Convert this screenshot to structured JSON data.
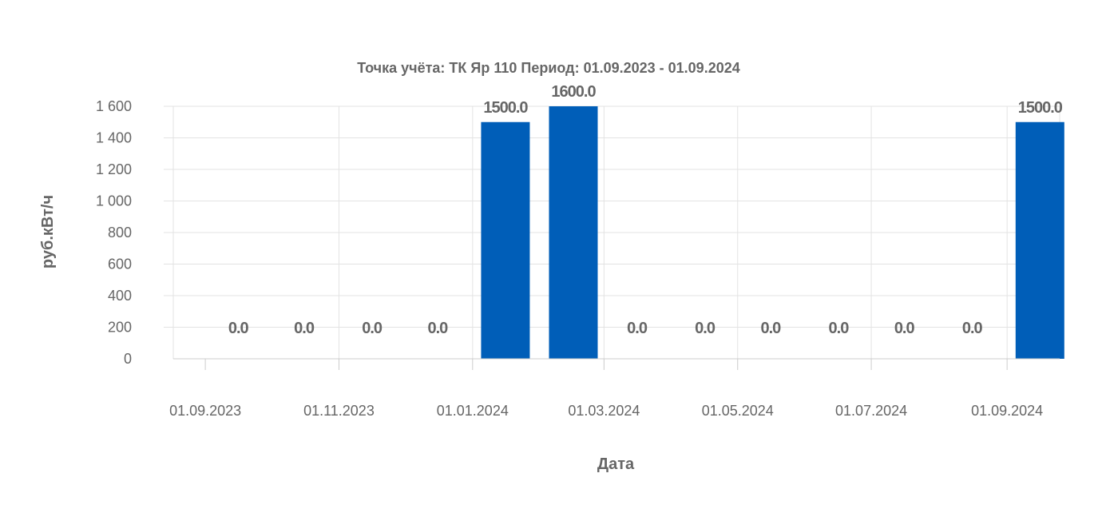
{
  "chart_data": {
    "type": "bar",
    "title": "Точка учёта: ТК Яр 110  Период: 01.09.2023 - 01.09.2024",
    "xlabel": "Дата",
    "ylabel": "руб.кВт/ч",
    "ylim": [
      0,
      1600
    ],
    "yticks": [
      0,
      200,
      400,
      600,
      800,
      1000,
      1200,
      1400,
      1600
    ],
    "ytick_labels": [
      "0",
      "200",
      "400",
      "600",
      "800",
      "1 000",
      "1 200",
      "1 400",
      "1 600"
    ],
    "xlim": [
      "2023-08-13",
      "2024-09-25"
    ],
    "xtick_dates": [
      "2023-09-01",
      "2023-11-01",
      "2024-01-01",
      "2024-03-01",
      "2024-05-01",
      "2024-07-01",
      "2024-09-01"
    ],
    "xtick_labels": [
      "01.09.2023",
      "01.11.2023",
      "01.01.2024",
      "01.03.2024",
      "01.05.2024",
      "01.07.2024",
      "01.09.2024"
    ],
    "x": [
      "2023-09-01",
      "2023-10-01",
      "2023-11-01",
      "2023-12-01",
      "2024-01-01",
      "2024-02-01",
      "2024-03-01",
      "2024-04-01",
      "2024-05-01",
      "2024-06-01",
      "2024-07-01",
      "2024-08-01",
      "2024-09-01"
    ],
    "values": [
      0,
      0,
      0,
      0,
      1500,
      1600,
      0,
      0,
      0,
      0,
      0,
      0,
      1500
    ],
    "data_labels": [
      "0.0",
      "0.0",
      "0.0",
      "0.0",
      "1500.0",
      "1600.0",
      "0.0",
      "0.0",
      "0.0",
      "0.0",
      "0.0",
      "0.0",
      "1500.0"
    ],
    "bar_color": "#005eb8",
    "grid": true,
    "legend": "none"
  }
}
